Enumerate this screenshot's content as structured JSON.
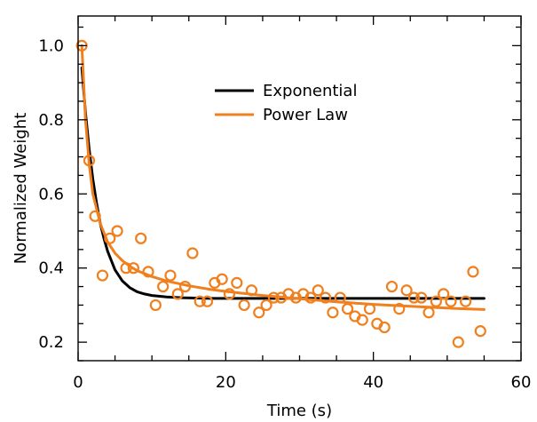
{
  "chart_data": {
    "type": "scatter",
    "xlabel": "Time (s)",
    "ylabel": "Normalized Weight",
    "xlim": [
      0,
      60
    ],
    "ylim": [
      0.15,
      1.08
    ],
    "xticks": [
      0,
      20,
      40,
      60
    ],
    "yticks": [
      0.2,
      0.4,
      0.6,
      0.8,
      1.0
    ],
    "ytick_labels": [
      "0.2",
      "0.4",
      "0.6",
      "0.8",
      "1.0"
    ],
    "grid": false,
    "legend_position": "top-center",
    "series": [
      {
        "name": "Exponential",
        "kind": "line",
        "color": "#000000",
        "x": [
          0.5,
          1,
          1.5,
          2,
          2.5,
          3,
          3.5,
          4,
          5,
          6,
          7,
          8,
          9,
          10,
          12,
          14,
          16,
          18,
          20,
          25,
          30,
          35,
          40,
          45,
          50,
          55
        ],
        "y": [
          0.94,
          0.82,
          0.72,
          0.64,
          0.575,
          0.52,
          0.48,
          0.445,
          0.395,
          0.365,
          0.347,
          0.336,
          0.33,
          0.326,
          0.322,
          0.32,
          0.319,
          0.318,
          0.318,
          0.318,
          0.318,
          0.318,
          0.318,
          0.318,
          0.318,
          0.318
        ]
      },
      {
        "name": "Power Law",
        "kind": "line",
        "color": "#f07f1e",
        "x": [
          0.5,
          1,
          1.5,
          2,
          3,
          4,
          5,
          6,
          7,
          8,
          10,
          12,
          15,
          18,
          20,
          25,
          30,
          35,
          40,
          45,
          50,
          55
        ],
        "y": [
          1.0,
          0.8,
          0.68,
          0.6,
          0.52,
          0.47,
          0.44,
          0.42,
          0.405,
          0.393,
          0.377,
          0.365,
          0.352,
          0.342,
          0.337,
          0.326,
          0.317,
          0.309,
          0.302,
          0.297,
          0.292,
          0.288
        ]
      },
      {
        "name": "",
        "kind": "scatter",
        "color": "#f07f1e",
        "x": [
          0.5,
          1.5,
          2.3,
          3.3,
          4.3,
          5.3,
          6.5,
          7.5,
          8.5,
          9.5,
          10.5,
          11.5,
          12.5,
          13.5,
          14.5,
          15.5,
          16.5,
          17.5,
          18.5,
          19.5,
          20.5,
          21.5,
          22.5,
          23.5,
          24.5,
          25.5,
          26.5,
          27.5,
          28.5,
          29.5,
          30.5,
          31.5,
          32.5,
          33.5,
          34.5,
          35.5,
          36.5,
          37.5,
          38.5,
          39.5,
          40.5,
          41.5,
          42.5,
          43.5,
          44.5,
          45.5,
          46.5,
          47.5,
          48.5,
          49.5,
          50.5,
          51.5,
          52.5,
          53.5,
          54.5
        ],
        "y": [
          1.0,
          0.69,
          0.54,
          0.38,
          0.48,
          0.5,
          0.4,
          0.4,
          0.48,
          0.39,
          0.3,
          0.35,
          0.38,
          0.33,
          0.35,
          0.44,
          0.31,
          0.31,
          0.36,
          0.37,
          0.33,
          0.36,
          0.3,
          0.34,
          0.28,
          0.3,
          0.32,
          0.32,
          0.33,
          0.32,
          0.33,
          0.32,
          0.34,
          0.32,
          0.28,
          0.32,
          0.29,
          0.27,
          0.26,
          0.29,
          0.25,
          0.24,
          0.35,
          0.29,
          0.34,
          0.32,
          0.32,
          0.28,
          0.31,
          0.33,
          0.31,
          0.2,
          0.31,
          0.39,
          0.23
        ]
      }
    ]
  }
}
